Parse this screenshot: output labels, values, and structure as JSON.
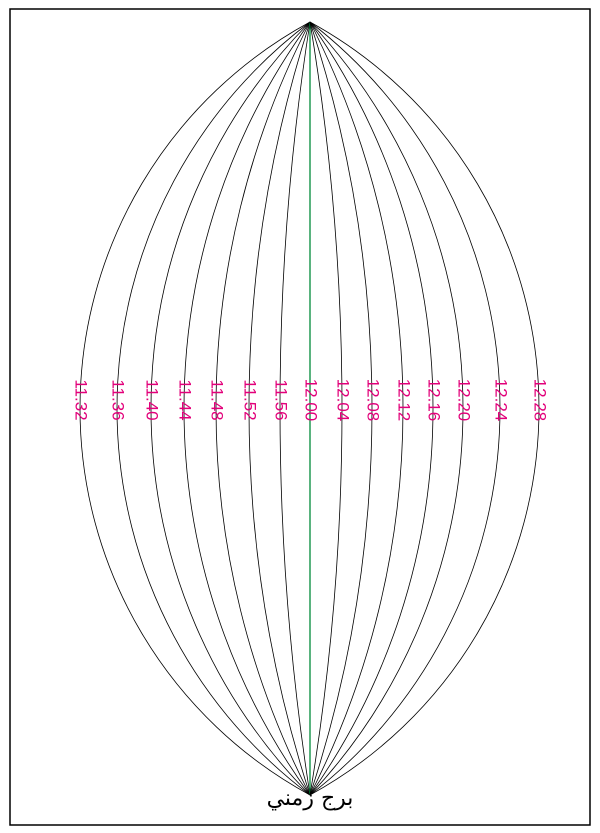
{
  "diagram": {
    "title": "برج زمني",
    "lines": [
      "11.32",
      "11.36",
      "11.40",
      "11.44",
      "11.48",
      "11.52",
      "11.56",
      "12.00",
      "12.04",
      "12.08",
      "12.12",
      "12.16",
      "12.20",
      "12.24",
      "12.28"
    ]
  }
}
